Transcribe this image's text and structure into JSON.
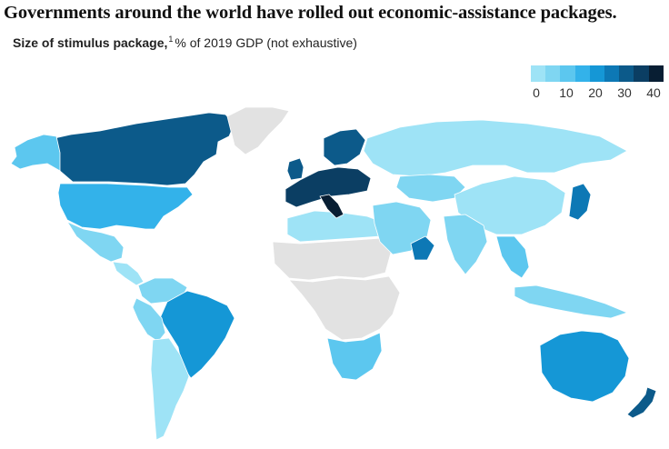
{
  "title": "Governments around the world have rolled out economic-assistance packages.",
  "subtitle": {
    "bold": "Size of stimulus package,",
    "footnote": "1",
    "rest": "% of 2019 GDP (not exhaustive)"
  },
  "legend": {
    "ticks": [
      "0",
      "10",
      "20",
      "30",
      "40"
    ],
    "colors": [
      "#9ee3f6",
      "#7fd6f2",
      "#5cc7ef",
      "#33b2ea",
      "#1597d6",
      "#0d78b5",
      "#0c5a8a",
      "#0b3e63",
      "#081e33"
    ]
  },
  "colors": {
    "no_data": "#e2e2e2",
    "ocean": "#ffffff",
    "border": "#ffffff"
  },
  "regions": [
    {
      "name": "Canada",
      "bucket": 6
    },
    {
      "name": "Alaska",
      "bucket": 2
    },
    {
      "name": "Greenland",
      "bucket": -1
    },
    {
      "name": "United States",
      "bucket": 3
    },
    {
      "name": "Mexico",
      "bucket": 1
    },
    {
      "name": "Central America",
      "bucket": 0
    },
    {
      "name": "Brazil",
      "bucket": 4
    },
    {
      "name": "Peru",
      "bucket": 1
    },
    {
      "name": "Chile & Argentina",
      "bucket": 0
    },
    {
      "name": "Colombia & Venezuela",
      "bucket": 1
    },
    {
      "name": "North Africa",
      "bucket": 0
    },
    {
      "name": "Sahara",
      "bucket": -1
    },
    {
      "name": "Central Africa",
      "bucket": -1
    },
    {
      "name": "Southern Africa",
      "bucket": 2
    },
    {
      "name": "Russia",
      "bucket": 0
    },
    {
      "name": "Scandinavia",
      "bucket": 6
    },
    {
      "name": "Western Europe",
      "bucket": 7
    },
    {
      "name": "United Kingdom",
      "bucket": 6
    },
    {
      "name": "Italy",
      "bucket": 8
    },
    {
      "name": "Kazakhstan",
      "bucket": 1
    },
    {
      "name": "Middle East",
      "bucket": 1
    },
    {
      "name": "Oman",
      "bucket": 5
    },
    {
      "name": "China",
      "bucket": 0
    },
    {
      "name": "India",
      "bucket": 1
    },
    {
      "name": "Southeast Asia",
      "bucket": 2
    },
    {
      "name": "Japan",
      "bucket": 5
    },
    {
      "name": "Indonesia",
      "bucket": 1
    },
    {
      "name": "Australia",
      "bucket": 4
    },
    {
      "name": "New Zealand",
      "bucket": 6
    }
  ]
}
